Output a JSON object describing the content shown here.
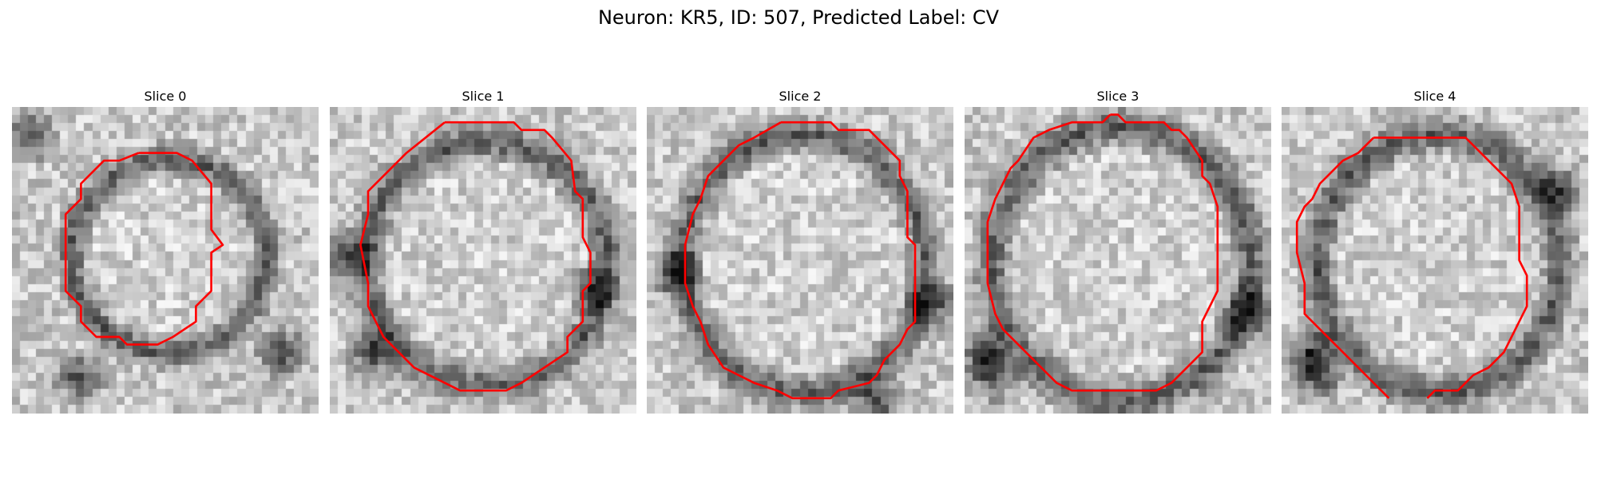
{
  "figure": {
    "title": "Neuron: KR5, ID: 507, Predicted Label: CV"
  },
  "style": {
    "contour_color": "#ff0000"
  },
  "panels": [
    {
      "title": "Slice 0",
      "contour": [
        [
          33,
          12
        ],
        [
          43,
          12
        ],
        [
          47,
          14
        ],
        [
          52,
          20
        ],
        [
          52,
          32
        ],
        [
          55,
          36
        ],
        [
          52,
          38
        ],
        [
          52,
          48
        ],
        [
          48,
          52
        ],
        [
          48,
          56
        ],
        [
          42,
          60
        ],
        [
          38,
          62
        ],
        [
          30,
          62
        ],
        [
          28,
          60
        ],
        [
          22,
          60
        ],
        [
          18,
          56
        ],
        [
          18,
          52
        ],
        [
          14,
          48
        ],
        [
          14,
          28
        ],
        [
          18,
          24
        ],
        [
          18,
          20
        ],
        [
          24,
          14
        ],
        [
          28,
          14
        ],
        [
          33,
          12
        ]
      ]
    },
    {
      "title": "Slice 1",
      "contour": [
        [
          30,
          4
        ],
        [
          48,
          4
        ],
        [
          50,
          6
        ],
        [
          56,
          6
        ],
        [
          58,
          8
        ],
        [
          63,
          14
        ],
        [
          64,
          22
        ],
        [
          66,
          24
        ],
        [
          66,
          34
        ],
        [
          68,
          38
        ],
        [
          68,
          46
        ],
        [
          66,
          48
        ],
        [
          66,
          56
        ],
        [
          62,
          60
        ],
        [
          62,
          64
        ],
        [
          56,
          68
        ],
        [
          50,
          72
        ],
        [
          46,
          74
        ],
        [
          34,
          74
        ],
        [
          30,
          72
        ],
        [
          22,
          68
        ],
        [
          14,
          60
        ],
        [
          12,
          56
        ],
        [
          10,
          52
        ],
        [
          10,
          46
        ],
        [
          8,
          36
        ],
        [
          10,
          28
        ],
        [
          10,
          22
        ],
        [
          16,
          16
        ],
        [
          20,
          12
        ],
        [
          30,
          4
        ]
      ]
    },
    {
      "title": "Slice 2",
      "contour": [
        [
          35,
          4
        ],
        [
          48,
          4
        ],
        [
          50,
          6
        ],
        [
          58,
          6
        ],
        [
          60,
          8
        ],
        [
          66,
          14
        ],
        [
          66,
          18
        ],
        [
          68,
          22
        ],
        [
          68,
          34
        ],
        [
          70,
          36
        ],
        [
          70,
          56
        ],
        [
          68,
          58
        ],
        [
          66,
          62
        ],
        [
          62,
          66
        ],
        [
          60,
          70
        ],
        [
          58,
          72
        ],
        [
          50,
          74
        ],
        [
          48,
          76
        ],
        [
          38,
          76
        ],
        [
          34,
          74
        ],
        [
          28,
          72
        ],
        [
          24,
          70
        ],
        [
          20,
          68
        ],
        [
          16,
          62
        ],
        [
          14,
          56
        ],
        [
          12,
          52
        ],
        [
          10,
          46
        ],
        [
          10,
          36
        ],
        [
          12,
          28
        ],
        [
          14,
          24
        ],
        [
          16,
          18
        ],
        [
          20,
          14
        ],
        [
          24,
          10
        ],
        [
          28,
          8
        ],
        [
          35,
          4
        ]
      ]
    },
    {
      "title": "Slice 3",
      "contour": [
        [
          38,
          2
        ],
        [
          40,
          2
        ],
        [
          42,
          4
        ],
        [
          52,
          4
        ],
        [
          54,
          6
        ],
        [
          56,
          6
        ],
        [
          58,
          8
        ],
        [
          62,
          14
        ],
        [
          62,
          18
        ],
        [
          64,
          20
        ],
        [
          66,
          26
        ],
        [
          66,
          48
        ],
        [
          64,
          52
        ],
        [
          62,
          56
        ],
        [
          62,
          64
        ],
        [
          58,
          68
        ],
        [
          54,
          72
        ],
        [
          50,
          74
        ],
        [
          28,
          74
        ],
        [
          24,
          72
        ],
        [
          18,
          66
        ],
        [
          14,
          62
        ],
        [
          10,
          58
        ],
        [
          8,
          54
        ],
        [
          6,
          46
        ],
        [
          6,
          30
        ],
        [
          8,
          24
        ],
        [
          10,
          20
        ],
        [
          12,
          16
        ],
        [
          14,
          14
        ],
        [
          18,
          8
        ],
        [
          22,
          6
        ],
        [
          28,
          4
        ],
        [
          36,
          4
        ],
        [
          38,
          2
        ]
      ]
    },
    {
      "title": "Slice 4",
      "contour": [
        [
          24,
          8
        ],
        [
          48,
          8
        ],
        [
          50,
          10
        ],
        [
          56,
          16
        ],
        [
          60,
          20
        ],
        [
          62,
          26
        ],
        [
          62,
          40
        ],
        [
          64,
          44
        ],
        [
          64,
          52
        ],
        [
          62,
          56
        ],
        [
          60,
          60
        ],
        [
          58,
          64
        ],
        [
          54,
          68
        ],
        [
          50,
          70
        ],
        [
          48,
          72
        ],
        [
          46,
          74
        ],
        [
          40,
          74
        ],
        [
          38,
          76
        ]
      ],
      "contour_extra": [
        [
          28,
          76
        ],
        [
          26,
          74
        ],
        [
          22,
          70
        ],
        [
          16,
          64
        ],
        [
          10,
          58
        ],
        [
          6,
          54
        ],
        [
          6,
          46
        ],
        [
          4,
          38
        ],
        [
          4,
          30
        ],
        [
          6,
          26
        ],
        [
          8,
          24
        ],
        [
          10,
          20
        ],
        [
          12,
          18
        ],
        [
          16,
          14
        ],
        [
          20,
          12
        ],
        [
          24,
          8
        ]
      ]
    }
  ]
}
